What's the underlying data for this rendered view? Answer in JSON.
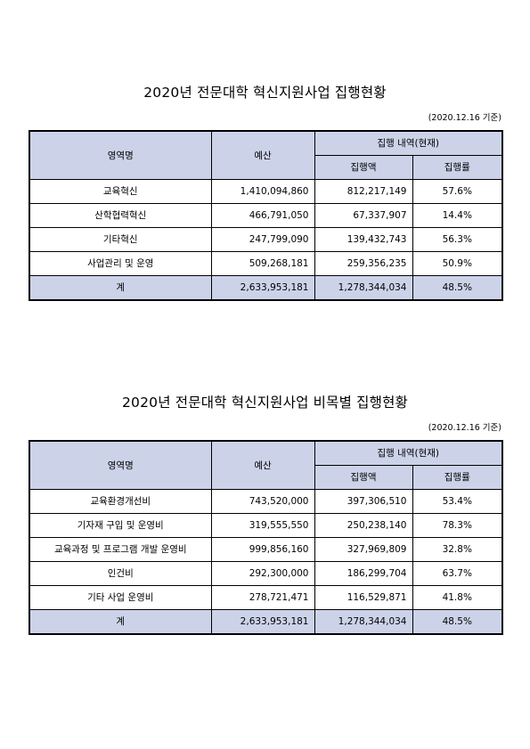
{
  "section1": {
    "title": "2020년 전문대학 혁신지원사업 집행현황",
    "note": "(2020.12.16 기준)",
    "headers": {
      "category": "영역명",
      "budget": "예산",
      "exec_group": "집행 내역(현재)",
      "exec_amount": "집행액",
      "exec_rate": "집행률"
    },
    "rows": [
      {
        "category": "교육혁신",
        "budget": "1,410,094,860",
        "exec_amount": "812,217,149",
        "exec_rate": "57.6%"
      },
      {
        "category": "산학협력혁신",
        "budget": "466,791,050",
        "exec_amount": "67,337,907",
        "exec_rate": "14.4%"
      },
      {
        "category": "기타혁신",
        "budget": "247,799,090",
        "exec_amount": "139,432,743",
        "exec_rate": "56.3%"
      },
      {
        "category": "사업관리 및 운영",
        "budget": "509,268,181",
        "exec_amount": "259,356,235",
        "exec_rate": "50.9%"
      }
    ],
    "total": {
      "category": "계",
      "budget": "2,633,953,181",
      "exec_amount": "1,278,344,034",
      "exec_rate": "48.5%"
    }
  },
  "section2": {
    "title": "2020년 전문대학 혁신지원사업 비목별 집행현황",
    "note": "(2020.12.16 기준)",
    "headers": {
      "category": "영역명",
      "budget": "예산",
      "exec_group": "집행 내역(현재)",
      "exec_amount": "집행액",
      "exec_rate": "집행률"
    },
    "rows": [
      {
        "category": "교육환경개선비",
        "budget": "743,520,000",
        "exec_amount": "397,306,510",
        "exec_rate": "53.4%"
      },
      {
        "category": "기자재 구입 및 운영비",
        "budget": "319,555,550",
        "exec_amount": "250,238,140",
        "exec_rate": "78.3%"
      },
      {
        "category": "교육과정 및 프로그램 개발 운영비",
        "budget": "999,856,160",
        "exec_amount": "327,969,809",
        "exec_rate": "32.8%"
      },
      {
        "category": "인건비",
        "budget": "292,300,000",
        "exec_amount": "186,299,704",
        "exec_rate": "63.7%"
      },
      {
        "category": "기타 사업 운영비",
        "budget": "278,721,471",
        "exec_amount": "116,529,871",
        "exec_rate": "41.8%"
      }
    ],
    "total": {
      "category": "계",
      "budget": "2,633,953,181",
      "exec_amount": "1,278,344,034",
      "exec_rate": "48.5%"
    }
  }
}
